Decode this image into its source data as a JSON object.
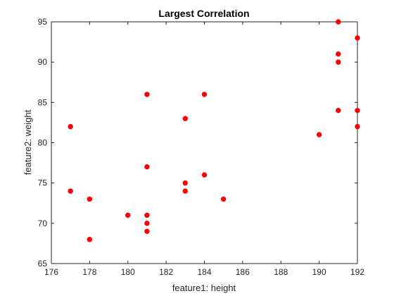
{
  "chart_data": {
    "type": "scatter",
    "title": "Largest Correlation",
    "xlabel": "feature1: height",
    "ylabel": "feature2: weight",
    "xlim": [
      176,
      192
    ],
    "ylim": [
      65,
      95
    ],
    "xticks": [
      176,
      178,
      180,
      182,
      184,
      186,
      188,
      190,
      192
    ],
    "yticks": [
      65,
      70,
      75,
      80,
      85,
      90,
      95
    ],
    "grid": false,
    "marker_color": "#ff0000",
    "series": [
      {
        "x": [
          177,
          177,
          178,
          178,
          180,
          181,
          181,
          181,
          181,
          181,
          183,
          183,
          183,
          184,
          184,
          185,
          190,
          191,
          191,
          191,
          191,
          192,
          192,
          192
        ],
        "y": [
          82,
          74,
          73,
          68,
          71,
          86,
          77,
          71,
          70,
          69,
          83,
          75,
          74,
          86,
          76,
          73,
          81,
          95,
          91,
          90,
          84,
          93,
          84,
          82
        ]
      }
    ]
  }
}
